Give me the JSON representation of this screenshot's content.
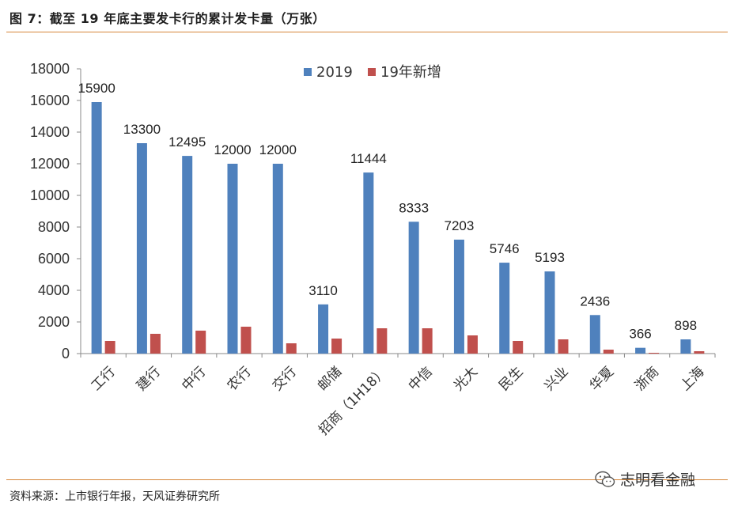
{
  "header": {
    "title": "图 7：截至 19 年底主要发卡行的累计发卡量（万张）"
  },
  "footer": {
    "source": "资料来源：上市银行年报，天风证券研究所",
    "watermark": "志明看金融",
    "watermark_icon": "wechat-icon"
  },
  "colors": {
    "series_2019": "#4f81bd",
    "series_new": "#c0504d",
    "rule": "#d6863a"
  },
  "chart_data": {
    "type": "bar",
    "title": "",
    "xlabel": "",
    "ylabel": "",
    "ylim": [
      0,
      18000
    ],
    "yticks": [
      0,
      2000,
      4000,
      6000,
      8000,
      10000,
      12000,
      14000,
      16000,
      18000
    ],
    "grid": false,
    "legend_position": "top-center",
    "categories": [
      "工行",
      "建行",
      "中行",
      "农行",
      "交行",
      "邮储",
      "招商（1H18）",
      "中信",
      "光大",
      "民生",
      "兴业",
      "华夏",
      "浙商",
      "上海"
    ],
    "series": [
      {
        "name": "2019",
        "color": "#4f81bd",
        "values": [
          15900,
          13300,
          12495,
          12000,
          12000,
          3110,
          11444,
          8333,
          7203,
          5746,
          5193,
          2436,
          366,
          898
        ],
        "data_labels": [
          "15900",
          "13300",
          "12495",
          "12000",
          "12000",
          "3110",
          "11444",
          "8333",
          "7203",
          "5746",
          "5193",
          "2436",
          "366",
          "898"
        ]
      },
      {
        "name": "19年新增",
        "color": "#c0504d",
        "values": [
          800,
          1250,
          1450,
          1700,
          650,
          950,
          1600,
          1600,
          1150,
          800,
          900,
          250,
          50,
          150
        ]
      }
    ]
  }
}
